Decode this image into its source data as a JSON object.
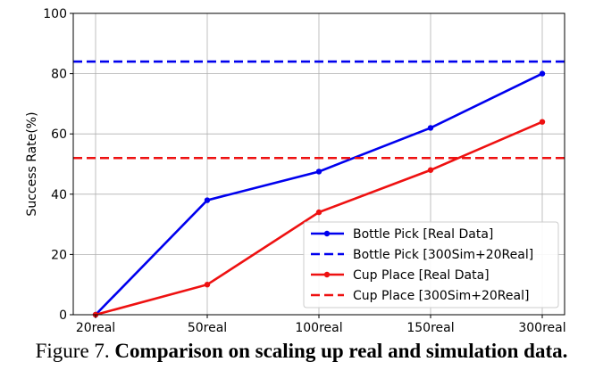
{
  "chart_data": {
    "type": "line",
    "categories": [
      "20real",
      "50real",
      "100real",
      "150real",
      "300real"
    ],
    "ylabel": "Success Rate(%)",
    "xlabel": "",
    "ylim": [
      0,
      100
    ],
    "yticks": [
      0,
      20,
      40,
      60,
      80,
      100
    ],
    "grid": true,
    "legend_position": "lower-right",
    "series": [
      {
        "name": "Bottle Pick [Real Data]",
        "color": "#0000ee",
        "style": "solid-marker",
        "values": [
          0,
          38,
          47.5,
          62,
          80
        ]
      },
      {
        "name": "Bottle Pick [300Sim+20Real]",
        "color": "#0000ee",
        "style": "dashed",
        "value": 84
      },
      {
        "name": "Cup Place [Real Data]",
        "color": "#ee1111",
        "style": "solid-marker",
        "values": [
          0,
          10,
          34,
          48,
          64
        ]
      },
      {
        "name": "Cup Place [300Sim+20Real]",
        "color": "#ee1111",
        "style": "dashed",
        "value": 52
      }
    ]
  },
  "caption": {
    "prefix": "Figure 7.",
    "text": "Comparison on scaling up real and simulation data."
  }
}
